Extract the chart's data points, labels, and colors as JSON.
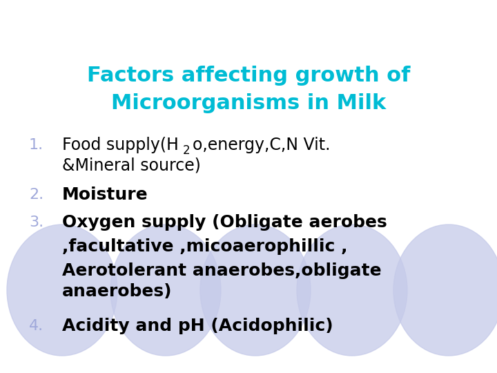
{
  "bg_color": "#ffffff",
  "title_line1": "Factors affecting growth of",
  "title_line2": "Microorganisms in Milk",
  "title_color": "#00bcd4",
  "title_bg_color": "#c5cae9",
  "number_color": "#9fa8da",
  "item1_line2": "&Mineral source)",
  "item2_text": "Moisture",
  "item3_line1": "Oxygen supply (Obligate aerobes",
  "item3_line2": ",facultative ,micoaerophillic ,",
  "item3_line3": "Aerotolerant anaerobes,obligate",
  "item3_line4": "anaerobes)",
  "item4_text": "Acidity and pH (Acidophilic)",
  "body_text_color": "#000000",
  "figsize": [
    7.2,
    5.4
  ],
  "dpi": 100
}
